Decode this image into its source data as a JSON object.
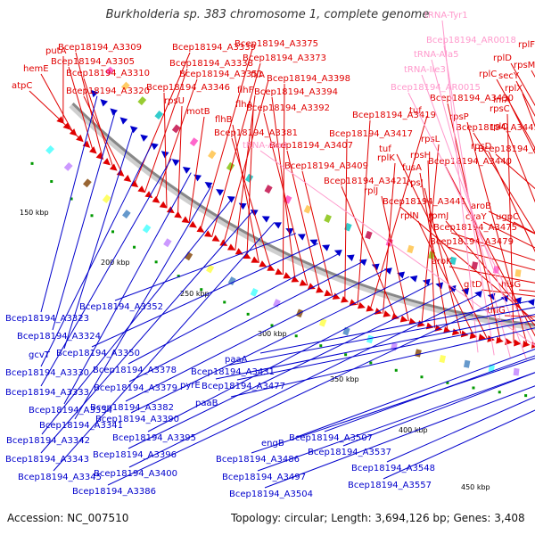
{
  "title": "Burkholderia sp. 383 chromosome 1, complete genome",
  "footer": {
    "accession": "Accession: NC_007510",
    "topology": "Topology: circular; Length: 3,694,126 bp; Genes: 3,408"
  },
  "colors": {
    "red": "#e00000",
    "blue": "#0000cc",
    "pink": "#ff99cc",
    "backbone": "#888888",
    "tick": "#009900"
  },
  "tick_labels": [
    "150 kbp",
    "200 kbp",
    "250 kbp",
    "300 kbp",
    "350 kbp",
    "400 kbp",
    "450 kbp"
  ],
  "red_labels": [
    "putA",
    "hemE",
    "atpC",
    "Bcep18194_A3305",
    "Bcep18194_A3309",
    "Bcep18194_A3310",
    "Bcep18194_A3320",
    "Bcep18194_A3339",
    "Bcep18194_A3338",
    "Bcep18194_A3351",
    "Bcep18194_A3346",
    "rpsU",
    "motB",
    "Bcep18194_A3375",
    "Bcep18194_A3373",
    "fliA",
    "flhF",
    "flhA",
    "flhB",
    "Bcep18194_A3381",
    "Bcep18194_A3398",
    "Bcep18194_A3394",
    "Bcep18194_A3392",
    "Bcep18194_A3407",
    "Bcep18194_A3409",
    "Bcep18194_A3417",
    "Bcep18194_A3419",
    "tuf",
    "rplK",
    "Bcep18194_A3421",
    "rplJ",
    "rpsL",
    "rpsH",
    "fusA",
    "rpsJ",
    "rplN",
    "tuf",
    "Bcep18194_A3430",
    "rpsC",
    "rpsP",
    "Bcep18194_A3440",
    "rpmJ",
    "Bcep18194_A3441",
    "rpsD",
    "rplQ",
    "Bcep18194_A3443",
    "rplX",
    "infA",
    "rplC",
    "secY",
    "rplD",
    "rpsM",
    "rplF",
    "Bcep18194_A3476",
    "cyaY",
    "ugpC",
    "aroB",
    "Bcep18194_A3475",
    "Bcep18194_A3479",
    "aroK",
    "gltD",
    "thiG",
    "hisG"
  ],
  "pink_labels": [
    "tRNA-Tyr1",
    "Bcep18194_AR0018",
    "tRNA-Ala5",
    "tRNA-Ile3",
    "Bcep18194_AR0015",
    "tRNA-Ala4"
  ],
  "blue_labels": [
    "Bcep18194_A3323",
    "Bcep18194_A3324",
    "gcvT",
    "Bcep18194_A3330",
    "Bcep18194_A3333",
    "Bcep18194_A3334",
    "Bcep18194_A3341",
    "Bcep18194_A3342",
    "Bcep18194_A3343",
    "Bcep18194_A3345",
    "Bcep18194_A3352",
    "Bcep18194_A3350",
    "Bcep18194_A3378",
    "Bcep18194_A3379",
    "Bcep18194_A3382",
    "Bcep18194_A3390",
    "Bcep18194_A3395",
    "Bcep18194_A3396",
    "Bcep18194_A3400",
    "Bcep18194_A3386",
    "paaA",
    "Bcep18194_A3431",
    "pyrE",
    "Bcep18194_A3477",
    "paaB",
    "engB",
    "Bcep18194_A3507",
    "Bcep18194_A3486",
    "Bcep18194_A3537",
    "Bcep18194_A3497",
    "Bcep18194_A3548",
    "Bcep18194_A3504",
    "Bcep18194_A3557"
  ]
}
